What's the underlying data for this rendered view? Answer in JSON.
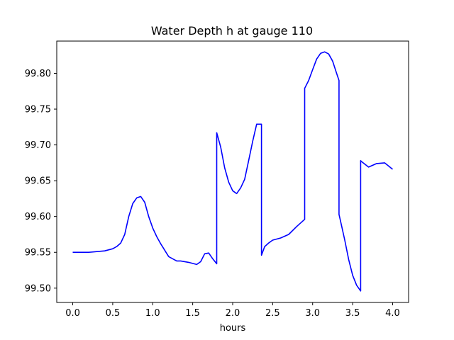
{
  "chart_data": {
    "type": "line",
    "title": "Water Depth h at gauge 110",
    "xlabel": "hours",
    "ylabel": "",
    "xlim": [
      -0.2,
      4.2
    ],
    "ylim": [
      99.48,
      99.845
    ],
    "grid": false,
    "xticks": [
      0.0,
      0.5,
      1.0,
      1.5,
      2.0,
      2.5,
      3.0,
      3.5,
      4.0
    ],
    "xtick_labels": [
      "0.0",
      "0.5",
      "1.0",
      "1.5",
      "2.0",
      "2.5",
      "3.0",
      "3.5",
      "4.0"
    ],
    "yticks": [
      99.5,
      99.55,
      99.6,
      99.65,
      99.7,
      99.75,
      99.8
    ],
    "ytick_labels": [
      "99.50",
      "99.55",
      "99.60",
      "99.65",
      "99.70",
      "99.75",
      "99.80"
    ],
    "color": "#0000ff",
    "series": [
      {
        "x": [
          0.0,
          0.2,
          0.3,
          0.4,
          0.5,
          0.55,
          0.6,
          0.65,
          0.7,
          0.75,
          0.8,
          0.85,
          0.9,
          0.95,
          1.0,
          1.05,
          1.1,
          1.2,
          1.3,
          1.35,
          1.45,
          1.55,
          1.6,
          1.65,
          1.7,
          1.75,
          1.8,
          1.8,
          1.85,
          1.9,
          1.95,
          2.0,
          2.05,
          2.1,
          2.15,
          2.2,
          2.25,
          2.3,
          2.36,
          2.36,
          2.4,
          2.45,
          2.5,
          2.6,
          2.7,
          2.8,
          2.9,
          2.9,
          2.95,
          3.0,
          3.05,
          3.1,
          3.15,
          3.2,
          3.25,
          3.3,
          3.33,
          3.33,
          3.35,
          3.4,
          3.45,
          3.5,
          3.55,
          3.6,
          3.6,
          3.62,
          3.7,
          3.8,
          3.9,
          4.0
        ],
        "y": [
          99.55,
          99.55,
          99.551,
          99.552,
          99.555,
          99.558,
          99.563,
          99.575,
          99.6,
          99.618,
          99.626,
          99.628,
          99.62,
          99.6,
          99.584,
          99.572,
          99.562,
          99.544,
          99.538,
          99.538,
          99.536,
          99.533,
          99.537,
          99.548,
          99.549,
          99.541,
          99.534,
          99.717,
          99.697,
          99.668,
          99.648,
          99.636,
          99.632,
          99.64,
          99.652,
          99.678,
          99.705,
          99.729,
          99.729,
          99.546,
          99.558,
          99.563,
          99.567,
          99.57,
          99.575,
          99.586,
          99.596,
          99.779,
          99.79,
          99.805,
          99.82,
          99.828,
          99.83,
          99.827,
          99.817,
          99.8,
          99.79,
          99.603,
          99.593,
          99.568,
          99.54,
          99.518,
          99.504,
          99.496,
          99.678,
          99.676,
          99.669,
          99.674,
          99.675,
          99.666
        ]
      }
    ]
  }
}
